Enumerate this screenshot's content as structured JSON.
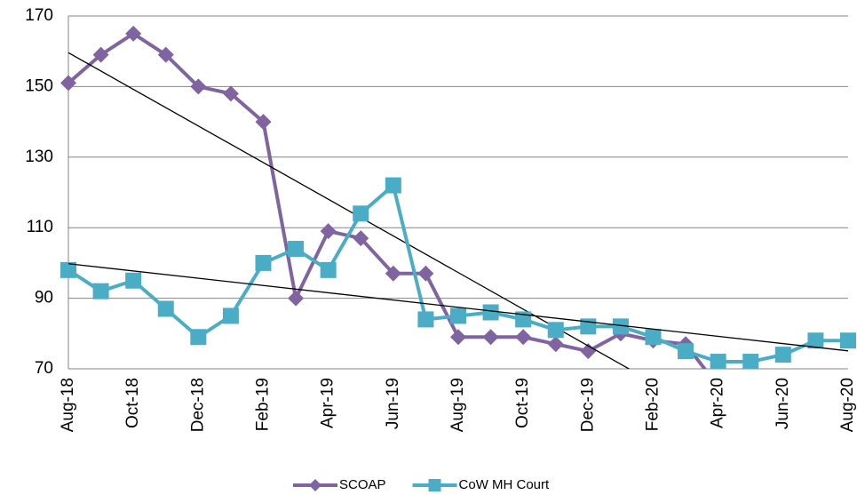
{
  "chart_data": {
    "type": "line",
    "categories": [
      "Aug-18",
      null,
      "Oct-18",
      null,
      "Dec-18",
      null,
      "Feb-19",
      null,
      "Apr-19",
      null,
      "Jun-19",
      null,
      "Aug-19",
      null,
      "Oct-19",
      null,
      "Dec-19",
      null,
      "Feb-20",
      null,
      "Apr-20",
      null,
      "Jun-20",
      null,
      "Aug-20"
    ],
    "series": [
      {
        "name": "SCOAP",
        "color": "#8064a2",
        "marker": "diamond",
        "values": [
          151,
          159,
          165,
          159,
          150,
          148,
          140,
          90,
          109,
          107,
          97,
          97,
          79,
          79,
          79,
          77,
          75,
          80,
          78,
          77,
          65,
          null,
          null,
          null,
          null
        ]
      },
      {
        "name": "CoW MH Court",
        "color": "#4bacc6",
        "marker": "square",
        "values": [
          98,
          92,
          95,
          87,
          79,
          85,
          100,
          104,
          98,
          114,
          122,
          84,
          85,
          86,
          84,
          81,
          82,
          82,
          79,
          75,
          72,
          72,
          74,
          78,
          78
        ]
      }
    ],
    "ylim": [
      70,
      170
    ],
    "yticks": [
      70,
      90,
      110,
      130,
      150,
      170
    ],
    "grid": true,
    "trendline": true,
    "legend": "bottom"
  }
}
